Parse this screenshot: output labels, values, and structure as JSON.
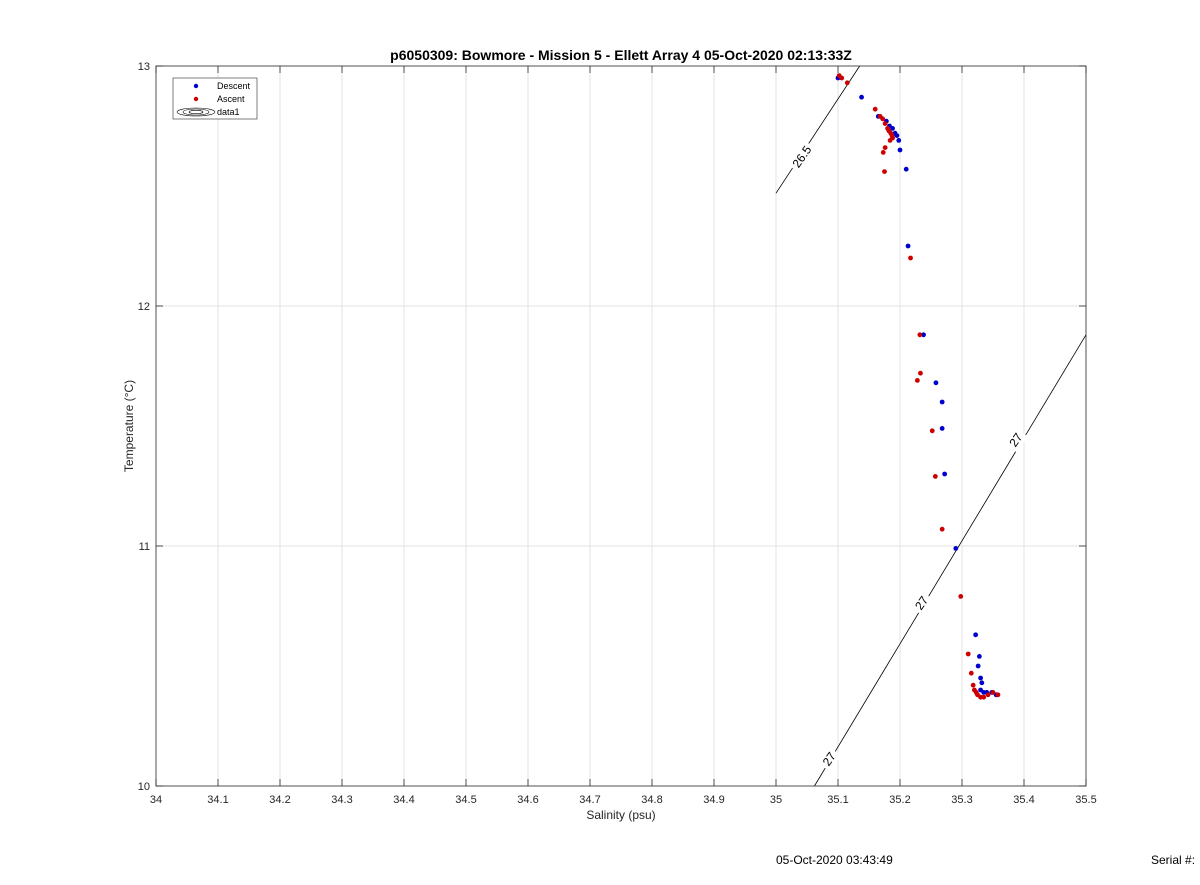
{
  "chart_data": {
    "type": "scatter",
    "title": "p6050309: Bowmore - Mission 5 - Ellett Array 4 05-Oct-2020 02:13:33Z",
    "xlabel": "Salinity (psu)",
    "ylabel": "Temperature (°C)",
    "xlim": [
      34,
      35.5
    ],
    "ylim": [
      10,
      13
    ],
    "xticks": [
      "34",
      "34.1",
      "34.2",
      "34.3",
      "34.4",
      "34.5",
      "34.6",
      "34.7",
      "34.8",
      "34.9",
      "35",
      "35.1",
      "35.2",
      "35.3",
      "35.4",
      "35.5"
    ],
    "yticks": [
      "10",
      "11",
      "12",
      "13"
    ],
    "grid": true,
    "legend_position": "top-left",
    "series": [
      {
        "name": "Descent",
        "color": "#0000cc",
        "marker": "dot",
        "points": [
          [
            35.1,
            12.95
          ],
          [
            35.138,
            12.87
          ],
          [
            35.165,
            12.79
          ],
          [
            35.178,
            12.77
          ],
          [
            35.183,
            12.75
          ],
          [
            35.188,
            12.74
          ],
          [
            35.192,
            12.72
          ],
          [
            35.195,
            12.71
          ],
          [
            35.198,
            12.69
          ],
          [
            35.2,
            12.65
          ],
          [
            35.21,
            12.57
          ],
          [
            35.213,
            12.25
          ],
          [
            35.238,
            11.88
          ],
          [
            35.258,
            11.68
          ],
          [
            35.268,
            11.6
          ],
          [
            35.268,
            11.49
          ],
          [
            35.272,
            11.3
          ],
          [
            35.29,
            10.99
          ],
          [
            35.322,
            10.63
          ],
          [
            35.328,
            10.54
          ],
          [
            35.326,
            10.5
          ],
          [
            35.33,
            10.45
          ],
          [
            35.332,
            10.43
          ],
          [
            35.33,
            10.4
          ],
          [
            35.335,
            10.39
          ],
          [
            35.34,
            10.39
          ],
          [
            35.348,
            10.39
          ],
          [
            35.355,
            10.38
          ]
        ]
      },
      {
        "name": "Ascent",
        "color": "#cc0000",
        "marker": "dot",
        "points": [
          [
            35.102,
            12.96
          ],
          [
            35.106,
            12.95
          ],
          [
            35.115,
            12.93
          ],
          [
            35.16,
            12.82
          ],
          [
            35.168,
            12.79
          ],
          [
            35.172,
            12.78
          ],
          [
            35.176,
            12.76
          ],
          [
            35.18,
            12.74
          ],
          [
            35.182,
            12.73
          ],
          [
            35.185,
            12.72
          ],
          [
            35.187,
            12.71
          ],
          [
            35.188,
            12.7
          ],
          [
            35.184,
            12.69
          ],
          [
            35.176,
            12.66
          ],
          [
            35.173,
            12.64
          ],
          [
            35.175,
            12.56
          ],
          [
            35.217,
            12.2
          ],
          [
            35.232,
            11.88
          ],
          [
            35.233,
            11.72
          ],
          [
            35.228,
            11.69
          ],
          [
            35.252,
            11.48
          ],
          [
            35.257,
            11.29
          ],
          [
            35.268,
            11.07
          ],
          [
            35.298,
            10.79
          ],
          [
            35.31,
            10.55
          ],
          [
            35.315,
            10.47
          ],
          [
            35.318,
            10.42
          ],
          [
            35.32,
            10.4
          ],
          [
            35.323,
            10.39
          ],
          [
            35.325,
            10.38
          ],
          [
            35.33,
            10.37
          ],
          [
            35.335,
            10.37
          ],
          [
            35.342,
            10.38
          ],
          [
            35.35,
            10.39
          ],
          [
            35.358,
            10.38
          ]
        ]
      },
      {
        "name": "data1",
        "type": "contour",
        "contours": [
          {
            "label": "26.5",
            "line": [
              [
                35.0,
                12.47
              ],
              [
                35.135,
                13.0
              ]
            ],
            "label_at": [
              35.043,
              12.62
            ]
          },
          {
            "label": "27",
            "line": [
              [
                35.062,
                10.0
              ],
              [
                35.5,
                11.88
              ]
            ],
            "label_at": [
              35.087,
              10.11
            ]
          },
          {
            "label": "27",
            "label_at": [
              35.236,
              10.76
            ]
          },
          {
            "label": "27",
            "label_at": [
              35.388,
              11.44
            ]
          }
        ]
      }
    ]
  },
  "footer": {
    "timestamp": "05-Oct-2020 03:43:49",
    "serial": "Serial #:"
  }
}
